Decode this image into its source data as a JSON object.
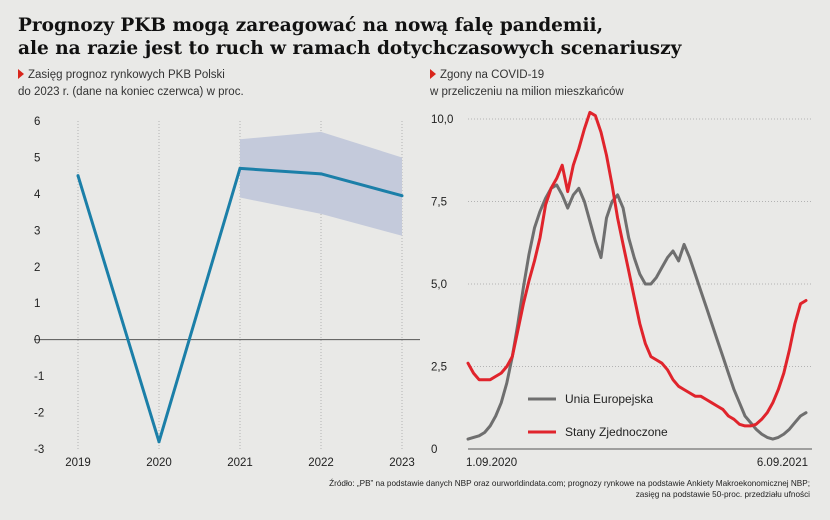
{
  "header": {
    "title_line1": "Prognozy PKB mogą zareagować na nową falę pandemii,",
    "title_line2": "ale na razie jest to ruch w ramach dotychczasowych scenariuszy"
  },
  "left_subtitle": {
    "line1": "Zasięg prognoz rynkowych PKB Polski",
    "line2": "do 2023 r. (dane na koniec czerwca) w proc."
  },
  "right_subtitle": {
    "line1": "Zgony na COVID-19",
    "line2": "w przeliczeniu na milion mieszkańców"
  },
  "source": {
    "line1": "Źródło: „PB” na podstawie danych NBP oraz ourworldindata.com; prognozy rynkowe na podstawie Ankiety Makroekonomicznej NBP;",
    "line2": "zasięg na podstawie 50-proc. przedziału ufności"
  },
  "colors": {
    "background": "#e9e9e7",
    "gdp_line": "#1b7fa8",
    "gdp_band": "#c4cadb",
    "eu_line": "#6f6f6f",
    "us_line": "#e0242c",
    "accent": "#d9261c"
  },
  "chart_data": [
    {
      "type": "line",
      "categories": [
        "2019",
        "2020",
        "2021",
        "2022",
        "2023"
      ],
      "series": [
        {
          "values": [
            4.5,
            -2.8,
            4.7,
            4.55,
            3.95
          ]
        }
      ],
      "band": {
        "lower": [
          null,
          null,
          3.9,
          3.45,
          2.85
        ],
        "upper": [
          null,
          null,
          5.5,
          5.7,
          5.0
        ]
      },
      "yticks": [
        6,
        5,
        4,
        3,
        2,
        1,
        0,
        -1,
        -2,
        -3
      ],
      "ylim": [
        -3,
        6
      ],
      "grid": "vertical dotted at categories",
      "zero_line": true
    },
    {
      "type": "line",
      "x_start": "1.09.2020",
      "x_end": "6.09.2021",
      "yticks": [
        "10,0",
        "7,5",
        "5,0",
        "2,5",
        "0"
      ],
      "ylim": [
        0,
        10
      ],
      "grid": "horizontal dotted",
      "legend": "inside lower-left",
      "series": [
        {
          "name": "Unia Europejska",
          "values": [
            0.3,
            0.35,
            0.4,
            0.5,
            0.7,
            1.0,
            1.4,
            2.0,
            2.8,
            3.8,
            4.9,
            5.9,
            6.7,
            7.2,
            7.6,
            7.9,
            8.0,
            7.7,
            7.3,
            7.7,
            7.9,
            7.5,
            6.9,
            6.3,
            5.8,
            7.0,
            7.5,
            7.7,
            7.3,
            6.4,
            5.8,
            5.3,
            5.0,
            5.0,
            5.2,
            5.5,
            5.8,
            6.0,
            5.7,
            6.2,
            5.8,
            5.3,
            4.8,
            4.3,
            3.8,
            3.3,
            2.8,
            2.3,
            1.8,
            1.4,
            1.0,
            0.8,
            0.6,
            0.45,
            0.35,
            0.3,
            0.35,
            0.45,
            0.6,
            0.8,
            1.0,
            1.1
          ]
        },
        {
          "name": "Stany Zjednoczone",
          "values": [
            2.6,
            2.3,
            2.1,
            2.1,
            2.1,
            2.2,
            2.3,
            2.5,
            2.8,
            3.6,
            4.4,
            5.1,
            5.7,
            6.4,
            7.4,
            7.9,
            8.2,
            8.6,
            7.8,
            8.6,
            9.1,
            9.7,
            10.2,
            10.1,
            9.6,
            8.9,
            8.0,
            7.0,
            6.2,
            5.4,
            4.6,
            3.8,
            3.2,
            2.8,
            2.7,
            2.6,
            2.4,
            2.1,
            1.9,
            1.8,
            1.7,
            1.6,
            1.6,
            1.5,
            1.4,
            1.3,
            1.2,
            1.0,
            0.9,
            0.75,
            0.7,
            0.7,
            0.75,
            0.9,
            1.1,
            1.4,
            1.8,
            2.3,
            3.0,
            3.8,
            4.4,
            4.5
          ]
        }
      ]
    }
  ]
}
